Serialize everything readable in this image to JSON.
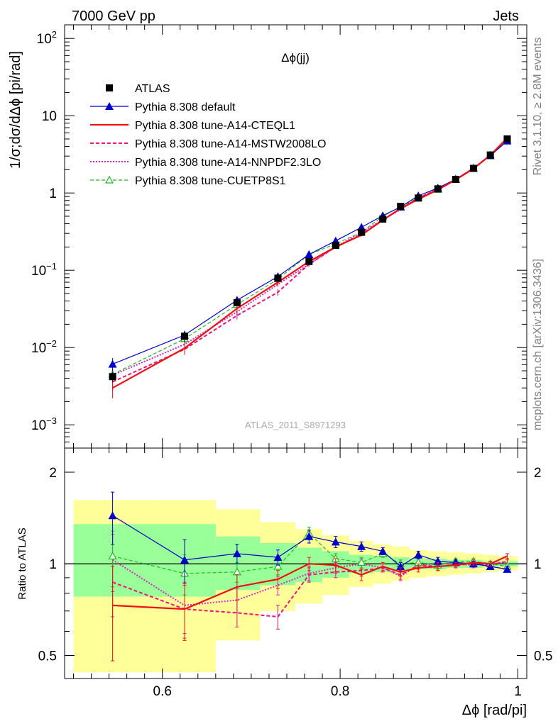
{
  "header": {
    "energy_label": "7000 GeV pp",
    "process_label": "Jets"
  },
  "side_labels": {
    "rivet": "Rivet 3.1.10, ≥ 2.8M events",
    "mcplots": "mcplots.cern.ch [arXiv:1306.3436]"
  },
  "chart_data": [
    {
      "type": "line",
      "title": "Δϕ(jj)",
      "analysis_label": "ATLAS_2011_S8971293",
      "ylabel": "1/σ;dσ/dΔϕ [pi/rad]",
      "xlabel": "",
      "y_scale": "log",
      "xlim": [
        0.49,
        1.01
      ],
      "ylim": [
        0.0005,
        150
      ],
      "y_ticks": [
        {
          "value": 0.001,
          "base": "10",
          "exp": "−3"
        },
        {
          "value": 0.01,
          "base": "10",
          "exp": "−2"
        },
        {
          "value": 0.1,
          "base": "10",
          "exp": "−1"
        },
        {
          "value": 1,
          "base": "1",
          "exp": ""
        },
        {
          "value": 10,
          "base": "10",
          "exp": ""
        },
        {
          "value": 100,
          "base": "10",
          "exp": "2"
        }
      ],
      "legend_position": "top-left",
      "x": [
        0.544,
        0.625,
        0.684,
        0.73,
        0.765,
        0.795,
        0.824,
        0.848,
        0.868,
        0.888,
        0.91,
        0.93,
        0.95,
        0.969,
        0.988
      ],
      "series": [
        {
          "name": "ATLAS",
          "marker": "square",
          "values": [
            0.0042,
            0.014,
            0.038,
            0.079,
            0.13,
            0.21,
            0.31,
            0.46,
            0.67,
            0.86,
            1.13,
            1.5,
            2.08,
            3.1,
            5.0
          ],
          "errors": [
            0.0006,
            0.0025,
            0.004,
            0.006,
            0.009,
            0.012,
            0.015,
            0.02,
            0.025,
            0.03,
            0.035,
            0.04,
            0.05,
            0.07,
            0.1
          ]
        },
        {
          "name": "Pythia 8.308 default",
          "marker": "triangle",
          "values": [
            0.0061,
            0.0145,
            0.041,
            0.083,
            0.16,
            0.24,
            0.36,
            0.51,
            0.66,
            0.92,
            1.16,
            1.5,
            2.1,
            3.04,
            4.72
          ],
          "errors": [
            0.0012,
            0.002,
            0.004,
            0.006,
            0.01,
            0.012,
            0.015,
            0.02,
            0.02,
            0.025,
            0.03,
            0.04,
            0.05,
            0.07,
            0.1
          ]
        },
        {
          "name": "Pythia 8.308 tune-A14-CTEQL1",
          "marker": "none",
          "values": [
            0.003,
            0.0098,
            0.032,
            0.07,
            0.13,
            0.2,
            0.285,
            0.445,
            0.63,
            0.83,
            1.1,
            1.48,
            2.06,
            3.08,
            5.15
          ],
          "errors": [
            0.0008,
            0.0015,
            0.003,
            0.006,
            0.008,
            0.01,
            0.012,
            0.02,
            0.025,
            0.03,
            0.035,
            0.04,
            0.05,
            0.07,
            0.1
          ]
        },
        {
          "name": "Pythia 8.308 tune-A14-MSTW2008LO",
          "marker": "none",
          "values": [
            0.0036,
            0.0095,
            0.026,
            0.052,
            0.12,
            0.2,
            0.29,
            0.45,
            0.63,
            0.86,
            1.13,
            1.5,
            2.08,
            3.1,
            5.0
          ],
          "errors": [
            0.0008,
            0.0015,
            0.003,
            0.005,
            0.008,
            0.01,
            0.012,
            0.02,
            0.025,
            0.03,
            0.035,
            0.04,
            0.05,
            0.07,
            0.1
          ]
        },
        {
          "name": "Pythia 8.308 tune-A14-NNPDF2.3LO",
          "marker": "none",
          "values": [
            0.0044,
            0.011,
            0.029,
            0.066,
            0.12,
            0.2,
            0.31,
            0.45,
            0.61,
            0.85,
            1.13,
            1.5,
            2.06,
            3.1,
            5.05
          ],
          "errors": [
            0.0008,
            0.0015,
            0.003,
            0.005,
            0.008,
            0.01,
            0.012,
            0.02,
            0.025,
            0.03,
            0.035,
            0.04,
            0.05,
            0.07,
            0.1
          ]
        },
        {
          "name": "Pythia 8.308 tune-CUETP8S1",
          "marker": "open-triangle",
          "values": [
            0.0045,
            0.013,
            0.036,
            0.077,
            0.16,
            0.22,
            0.31,
            0.5,
            0.66,
            0.87,
            1.11,
            1.52,
            2.1,
            3.12,
            4.9
          ],
          "errors": [
            0.0008,
            0.0018,
            0.003,
            0.005,
            0.009,
            0.01,
            0.012,
            0.02,
            0.025,
            0.03,
            0.035,
            0.04,
            0.05,
            0.07,
            0.1
          ]
        }
      ]
    },
    {
      "type": "line",
      "title": "",
      "ylabel": "Ratio to ATLAS",
      "xlabel": "Δϕ [rad/pi]",
      "y_scale": "log",
      "xlim": [
        0.49,
        1.01
      ],
      "ylim": [
        0.42,
        2.4
      ],
      "y_ticks": [
        {
          "value": 0.5,
          "label": "0.5"
        },
        {
          "value": 1,
          "label": "1"
        },
        {
          "value": 2,
          "label": "2"
        }
      ],
      "x_ticks": [
        {
          "value": 0.6,
          "label": "0.6"
        },
        {
          "value": 0.8,
          "label": "0.8"
        },
        {
          "value": 1,
          "label": "1"
        }
      ],
      "bins": [
        0.5,
        0.59,
        0.66,
        0.71,
        0.75,
        0.78,
        0.81,
        0.837,
        0.858,
        0.878,
        0.898,
        0.92,
        0.94,
        0.96,
        0.978,
        1.0
      ],
      "bands": {
        "stat_color": "#99ff99",
        "total_color": "#ffff99",
        "stat_low": [
          0.78,
          0.78,
          0.82,
          0.85,
          0.87,
          0.9,
          0.93,
          0.94,
          0.95,
          0.96,
          0.96,
          0.97,
          0.97,
          0.98,
          0.98
        ],
        "stat_high": [
          1.35,
          1.35,
          1.23,
          1.17,
          1.13,
          1.1,
          1.07,
          1.06,
          1.05,
          1.04,
          1.04,
          1.03,
          1.03,
          1.02,
          1.02
        ],
        "total_low": [
          0.44,
          0.44,
          0.56,
          0.7,
          0.74,
          0.79,
          0.84,
          0.86,
          0.88,
          0.9,
          0.91,
          0.92,
          0.93,
          0.94,
          0.95
        ],
        "total_high": [
          1.62,
          1.62,
          1.51,
          1.37,
          1.3,
          1.24,
          1.19,
          1.16,
          1.14,
          1.11,
          1.1,
          1.09,
          1.08,
          1.07,
          1.06
        ]
      },
      "x": [
        0.544,
        0.625,
        0.684,
        0.73,
        0.765,
        0.795,
        0.824,
        0.848,
        0.868,
        0.888,
        0.91,
        0.93,
        0.95,
        0.969,
        0.988
      ],
      "series": [
        {
          "name": "Pythia 8.308 default",
          "marker": "triangle",
          "values": [
            1.44,
            1.03,
            1.08,
            1.05,
            1.23,
            1.18,
            1.14,
            1.1,
            0.98,
            1.07,
            1.02,
            1.01,
            1.0,
            0.98,
            0.96
          ],
          "errors": [
            0.28,
            0.17,
            0.08,
            0.06,
            0.06,
            0.05,
            0.04,
            0.03,
            0.03,
            0.03,
            0.03,
            0.02,
            0.02,
            0.02,
            0.02
          ]
        },
        {
          "name": "Pythia 8.308 tune-A14-CTEQL1",
          "marker": "none",
          "values": [
            0.73,
            0.71,
            0.84,
            0.89,
            1.0,
            0.99,
            0.92,
            0.98,
            0.94,
            0.97,
            0.98,
            0.99,
            1.01,
            1.0,
            1.06
          ],
          "errors": [
            0.25,
            0.15,
            0.08,
            0.06,
            0.05,
            0.05,
            0.04,
            0.03,
            0.03,
            0.03,
            0.03,
            0.02,
            0.02,
            0.02,
            0.02
          ]
        },
        {
          "name": "Pythia 8.308 tune-A14-MSTW2008LO",
          "marker": "none",
          "values": [
            0.87,
            0.71,
            0.69,
            0.67,
            0.92,
            0.94,
            0.95,
            0.97,
            0.92,
            0.99,
            0.98,
            0.99,
            1.0,
            0.99,
            1.02
          ],
          "errors": [
            0.2,
            0.14,
            0.07,
            0.06,
            0.05,
            0.04,
            0.04,
            0.03,
            0.03,
            0.03,
            0.03,
            0.02,
            0.02,
            0.02,
            0.02
          ]
        },
        {
          "name": "Pythia 8.308 tune-A14-NNPDF2.3LO",
          "marker": "none",
          "values": [
            1.03,
            0.73,
            0.76,
            0.85,
            0.93,
            0.97,
            1.0,
            0.97,
            0.91,
            0.99,
            1.0,
            1.0,
            0.99,
            1.0,
            1.01
          ],
          "errors": [
            0.22,
            0.14,
            0.07,
            0.06,
            0.05,
            0.04,
            0.04,
            0.03,
            0.03,
            0.03,
            0.03,
            0.02,
            0.02,
            0.02,
            0.02
          ]
        },
        {
          "name": "Pythia 8.308 tune-CUETP8S1",
          "marker": "open-triangle",
          "values": [
            1.06,
            0.93,
            0.94,
            0.98,
            1.26,
            1.04,
            1.01,
            1.08,
            1.0,
            1.01,
            0.99,
            1.02,
            1.02,
            1.0,
            0.98
          ],
          "errors": [
            0.22,
            0.14,
            0.07,
            0.06,
            0.06,
            0.04,
            0.04,
            0.03,
            0.03,
            0.03,
            0.03,
            0.02,
            0.02,
            0.02,
            0.02
          ]
        }
      ]
    }
  ],
  "styles": [
    {
      "color": "#000000",
      "dash": "",
      "width": 1
    },
    {
      "color": "#0000cc",
      "dash": "",
      "width": 1.2
    },
    {
      "color": "#ee1111",
      "dash": "",
      "width": 2.2
    },
    {
      "color": "#ee1177",
      "dash": "5,3",
      "width": 2
    },
    {
      "color": "#dd22cc",
      "dash": "2,2",
      "width": 2
    },
    {
      "color": "#22bb22",
      "dash": "5,3",
      "width": 1.2
    }
  ]
}
